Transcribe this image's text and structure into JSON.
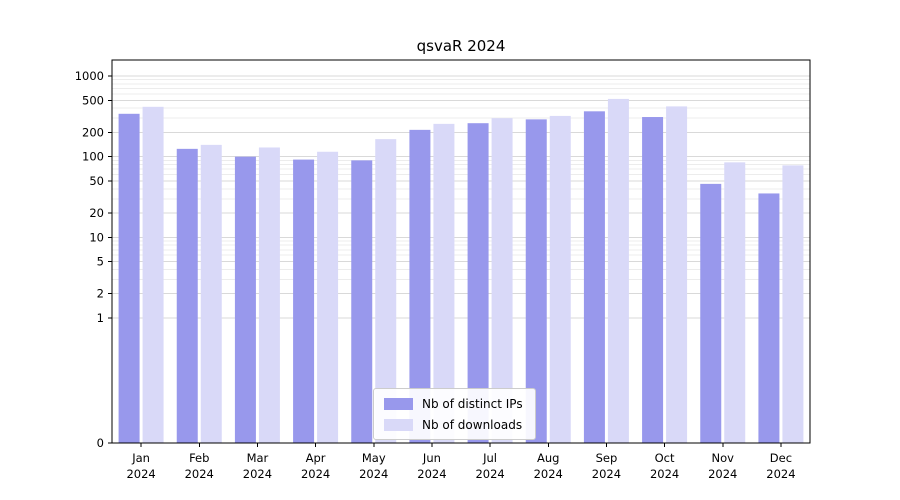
{
  "chart_data": {
    "type": "bar",
    "title": "qsvaR 2024",
    "categories": [
      "Jan",
      "Feb",
      "Mar",
      "Apr",
      "May",
      "Jun",
      "Jul",
      "Aug",
      "Sep",
      "Oct",
      "Nov",
      "Dec"
    ],
    "year": "2024",
    "series": [
      {
        "name": "Nb of distinct IPs",
        "color": "#9898ec",
        "values": [
          340,
          125,
          100,
          92,
          90,
          215,
          260,
          290,
          365,
          310,
          46,
          35
        ]
      },
      {
        "name": "Nb of downloads",
        "color": "#d9d9f8",
        "values": [
          415,
          140,
          130,
          115,
          165,
          255,
          300,
          320,
          520,
          420,
          85,
          78
        ]
      }
    ],
    "y_ticks": [
      0,
      1,
      2,
      5,
      10,
      20,
      50,
      100,
      200,
      500,
      1000
    ],
    "y_scale": "symlog",
    "ylim": [
      0,
      1000
    ],
    "grid": true,
    "legend_position": "bottom-center"
  }
}
